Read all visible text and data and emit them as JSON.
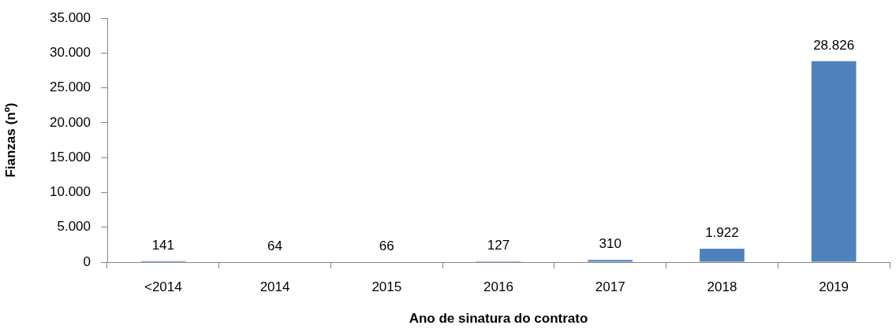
{
  "chart_data": {
    "type": "bar",
    "categories": [
      "<2014",
      "2014",
      "2015",
      "2016",
      "2017",
      "2018",
      "2019"
    ],
    "values": [
      141,
      64,
      66,
      127,
      310,
      1922,
      28826
    ],
    "color": "#4f81bd",
    "value_labels": [
      "141",
      "64",
      "66",
      "127",
      "310",
      "1.922",
      "28.826"
    ],
    "xlabel": "Ano de sinatura do contrato",
    "ylabel": "Fianzas (nº)",
    "ylim": [
      0,
      35000
    ],
    "yticks": [
      0,
      {
        "value": 5000,
        "label": "5.000"
      },
      {
        "value": 10000,
        "label": "10.000"
      },
      {
        "value": 15000,
        "label": "15.000"
      },
      {
        "value": 20000,
        "label": "20.000"
      },
      {
        "value": 25000,
        "label": "25.000"
      },
      {
        "value": 30000,
        "label": "30.000"
      },
      {
        "value": 35000,
        "label": "35.000"
      }
    ],
    "grid": false,
    "legend": false
  }
}
